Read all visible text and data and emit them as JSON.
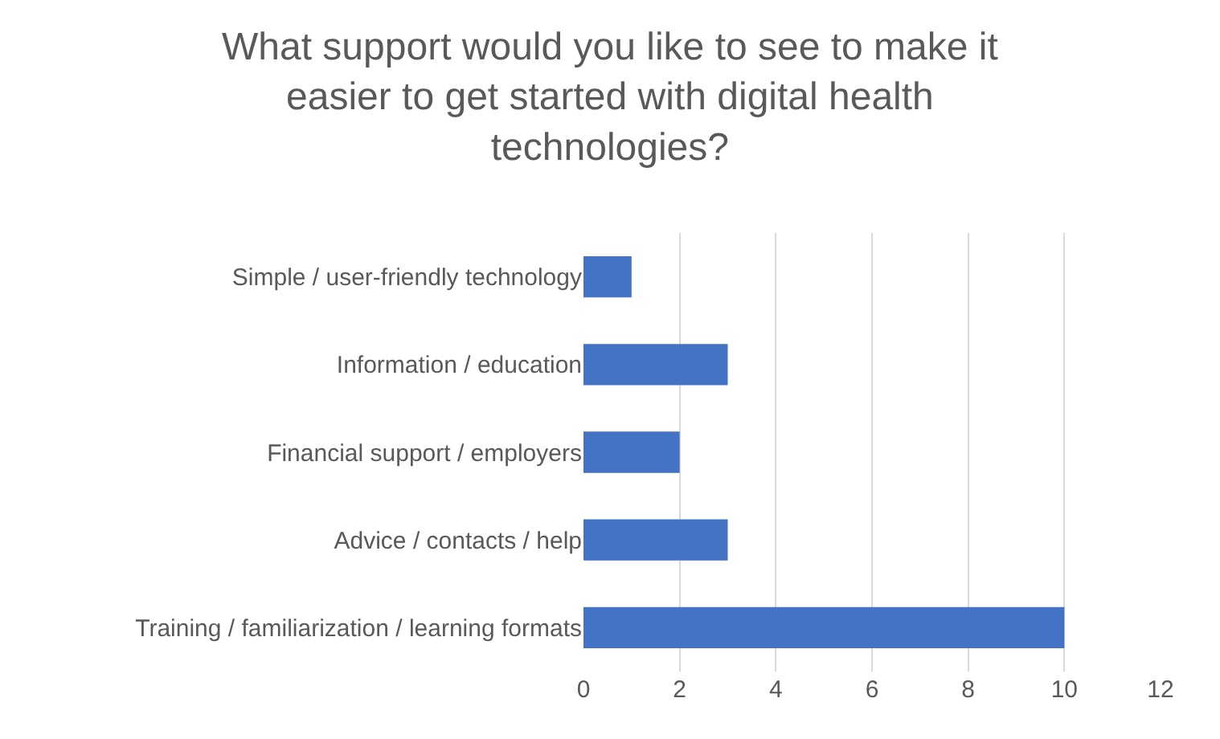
{
  "chart_data": {
    "type": "bar",
    "orientation": "horizontal",
    "title": "What support would you like to see to make it easier to get started with digital health technologies?",
    "categories": [
      "Simple / user-friendly technology",
      "Information / education",
      "Financial support / employers",
      "Advice / contacts / help",
      "Training / familiarization / learning formats"
    ],
    "values": [
      1,
      3,
      2,
      3,
      10
    ],
    "color": "#4472c4",
    "xlim": [
      0,
      12
    ],
    "xticks": [
      0,
      2,
      4,
      6,
      8,
      10,
      12
    ],
    "grid": "x",
    "legend": false
  }
}
